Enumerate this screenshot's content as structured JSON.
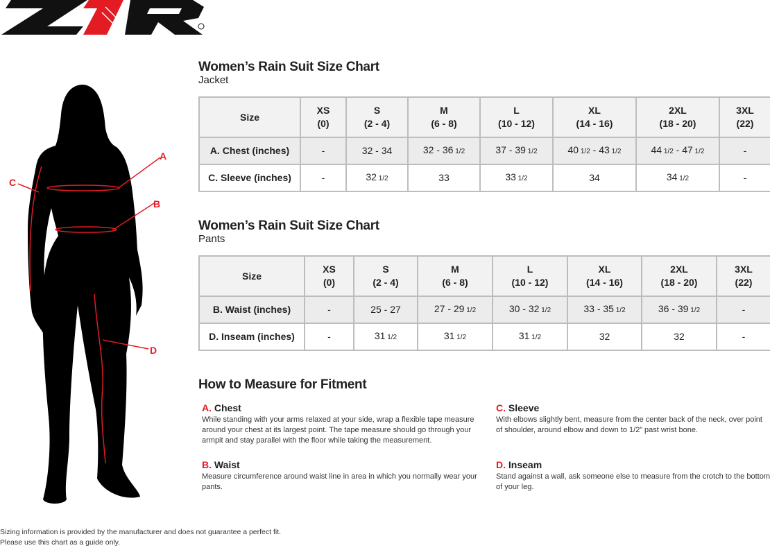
{
  "brand": {
    "logo_text": "Z1R",
    "accent": "#e31b23"
  },
  "figure": {
    "labels": [
      "A",
      "B",
      "C",
      "D"
    ]
  },
  "jacket": {
    "title": "Women’s Rain Suit Size Chart",
    "subtitle": "Jacket",
    "header": [
      [
        "Size"
      ],
      [
        "XS",
        "(0)"
      ],
      [
        "S",
        "(2 - 4)"
      ],
      [
        "M",
        "(6 - 8)"
      ],
      [
        "L",
        "(10 - 12)"
      ],
      [
        "XL",
        "(14 - 16)"
      ],
      [
        "2XL",
        "(18 - 20)"
      ],
      [
        "3XL",
        "(22)"
      ]
    ],
    "rows": [
      [
        "A. Chest (inches)",
        "-",
        "32 - 34",
        "32 - 36 1/2",
        "37 - 39 1/2",
        "40 1/2 - 43 1/2",
        "44 1/2 - 47 1/2",
        "-"
      ],
      [
        "C. Sleeve (inches)",
        "-",
        "32 1/2",
        "33",
        "33 1/2",
        "34",
        "34 1/2",
        "-"
      ]
    ]
  },
  "pants": {
    "title": "Women’s Rain Suit Size Chart",
    "subtitle": "Pants",
    "header": [
      [
        "Size"
      ],
      [
        "XS",
        "(0)"
      ],
      [
        "S",
        "(2 - 4)"
      ],
      [
        "M",
        "(6 - 8)"
      ],
      [
        "L",
        "(10 - 12)"
      ],
      [
        "XL",
        "(14 - 16)"
      ],
      [
        "2XL",
        "(18 - 20)"
      ],
      [
        "3XL",
        "(22)"
      ]
    ],
    "rows": [
      [
        "B. Waist (inches)",
        "-",
        "25 - 27",
        "27 - 29 1/2",
        "30 - 32 1/2",
        "33 - 35 1/2",
        "36 - 39 1/2",
        "-"
      ],
      [
        "D. Inseam (inches)",
        "-",
        "31 1/2",
        "31 1/2",
        "31 1/2",
        "32",
        "32",
        "-"
      ]
    ]
  },
  "measure": {
    "title": "How to Measure for Fitment",
    "items": [
      {
        "letter": "A.",
        "name": "Chest",
        "text": "While standing with your arms relaxed at your side, wrap a flexible tape measure around your chest at its largest point. The tape measure should go through your armpit and stay parallel with the floor while taking the measurement."
      },
      {
        "letter": "C.",
        "name": "Sleeve",
        "text": "With elbows slightly bent, measure from the center back of the neck, over point of shoulder, around elbow and down to 1/2” past wrist bone."
      },
      {
        "letter": "B.",
        "name": "Waist",
        "text": "Measure circumference around waist line in area in which you normally wear your pants."
      },
      {
        "letter": "D.",
        "name": "Inseam",
        "text": "Stand against a wall, ask someone else to measure from the crotch to the bottom of your leg."
      }
    ]
  },
  "footer": {
    "line1": "Sizing information is provided by the manufacturer and does not guarantee a perfect fit.",
    "line2": "Please use this chart as a guide only."
  }
}
